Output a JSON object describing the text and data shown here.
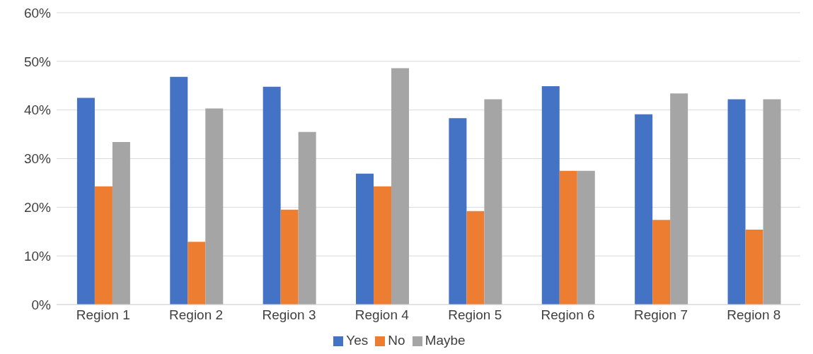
{
  "chart_data": {
    "type": "bar",
    "categories": [
      "Region 1",
      "Region 2",
      "Region 3",
      "Region 4",
      "Region 5",
      "Region 6",
      "Region 7",
      "Region 8"
    ],
    "series": [
      {
        "name": "Yes",
        "color": "#4472c4",
        "values": [
          42.5,
          46.8,
          44.8,
          26.9,
          38.3,
          44.9,
          39.1,
          42.2
        ]
      },
      {
        "name": "No",
        "color": "#ed7d31",
        "values": [
          24.3,
          12.9,
          19.5,
          24.3,
          19.2,
          27.5,
          17.4,
          15.4
        ]
      },
      {
        "name": "Maybe",
        "color": "#a5a5a5",
        "values": [
          33.4,
          40.3,
          35.5,
          48.6,
          42.2,
          27.5,
          43.4,
          42.2
        ]
      }
    ],
    "ylim": [
      0,
      60
    ],
    "yticks": [
      {
        "value": 0,
        "label": "0%"
      },
      {
        "value": 10,
        "label": "10%"
      },
      {
        "value": 20,
        "label": "20%"
      },
      {
        "value": 30,
        "label": "30%"
      },
      {
        "value": 40,
        "label": "40%"
      },
      {
        "value": 50,
        "label": "50%"
      },
      {
        "value": 60,
        "label": "60%"
      }
    ],
    "grid": "y",
    "legend": "bottom"
  }
}
